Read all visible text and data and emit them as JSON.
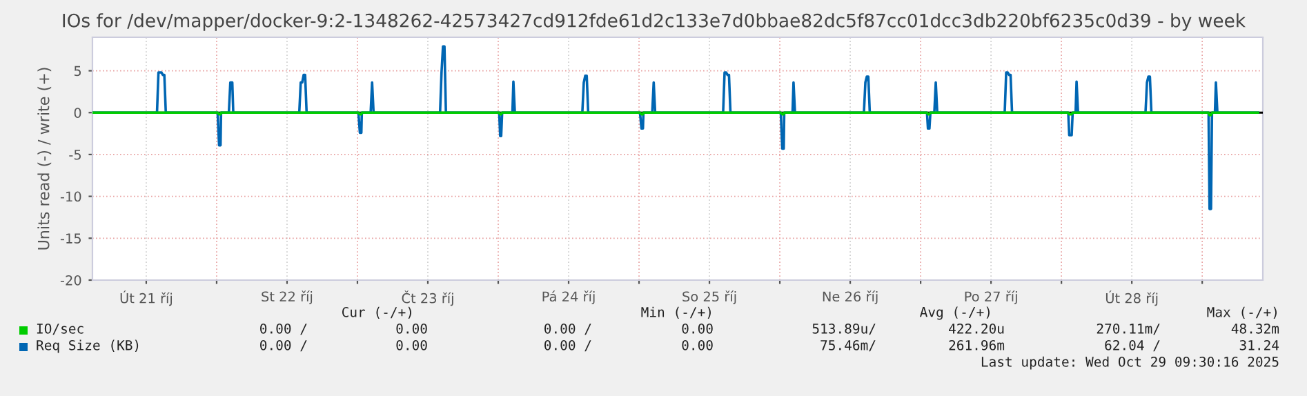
{
  "chart_data": {
    "type": "line",
    "title": "IOs for /dev/mapper/docker-9:2-1348262-42573427cd912fde61d2c133e7d0bbae82dc5f87cc01dcc3db220bf6235c0d39 - by week",
    "ylabel": "Units read (-) / write (+)",
    "xlim": [
      "2025-10-21T02:50",
      "2025-10-29T10:20"
    ],
    "xticks": [
      {
        "value": "2025-10-21T12:00",
        "label": "Út 21 říj"
      },
      {
        "value": "2025-10-22T00:00",
        "label": null
      },
      {
        "value": "2025-10-22T12:00",
        "label": "St 22 říj"
      },
      {
        "value": "2025-10-23T00:00",
        "label": null
      },
      {
        "value": "2025-10-23T12:00",
        "label": "Čt 23 říj"
      },
      {
        "value": "2025-10-24T00:00",
        "label": null
      },
      {
        "value": "2025-10-24T12:00",
        "label": "Pá 24 říj"
      },
      {
        "value": "2025-10-25T00:00",
        "label": null
      },
      {
        "value": "2025-10-25T12:00",
        "label": "So 25 říj"
      },
      {
        "value": "2025-10-26T00:00",
        "label": null
      },
      {
        "value": "2025-10-26T12:00",
        "label": "Ne 26 říj"
      },
      {
        "value": "2025-10-27T00:00",
        "label": null
      },
      {
        "value": "2025-10-27T12:00",
        "label": "Po 27 říj"
      },
      {
        "value": "2025-10-28T00:00",
        "label": null
      },
      {
        "value": "2025-10-28T12:00",
        "label": "Út 28 říj"
      },
      {
        "value": "2025-10-29T00:00",
        "label": null
      }
    ],
    "ylim": [
      -20,
      9
    ],
    "yticks": [
      -20,
      -15,
      -10,
      -5,
      0,
      5
    ],
    "grid": true,
    "legend": "bottom",
    "ref_lines": [
      {
        "axis": "y",
        "value": 0,
        "color": "#000000"
      }
    ],
    "series": [
      {
        "name": "IO/sec",
        "color": "#00cc00",
        "x": [
          "2025-10-21T03:00",
          "2025-10-22T00:10",
          "2025-10-22T00:25",
          "2025-10-22T00:40",
          "2025-10-22T00:45",
          "2025-10-23T00:10",
          "2025-10-23T00:25",
          "2025-10-23T00:40",
          "2025-10-23T00:45",
          "2025-10-24T00:10",
          "2025-10-24T00:20",
          "2025-10-24T00:30",
          "2025-10-24T00:40",
          "2025-10-25T00:10",
          "2025-10-25T00:25",
          "2025-10-25T00:40",
          "2025-10-25T00:45",
          "2025-10-26T00:10",
          "2025-10-26T00:25",
          "2025-10-26T00:40",
          "2025-10-26T00:45",
          "2025-10-27T01:05",
          "2025-10-27T01:15",
          "2025-10-27T01:30",
          "2025-10-27T01:40",
          "2025-10-28T01:10",
          "2025-10-28T01:20",
          "2025-10-28T01:45",
          "2025-10-28T01:55",
          "2025-10-29T01:05",
          "2025-10-29T01:15",
          "2025-10-29T01:30",
          "2025-10-29T01:40",
          "2025-10-29T09:30"
        ],
        "values": [
          0,
          0,
          -0.2,
          -0.2,
          0,
          0,
          -0.2,
          -0.2,
          0,
          0,
          -0.2,
          -0.2,
          0,
          0,
          -0.2,
          -0.2,
          0,
          0,
          -0.2,
          -0.2,
          0,
          0,
          -0.2,
          -0.2,
          0,
          0,
          -0.2,
          -0.2,
          0,
          0,
          -0.3,
          -0.3,
          0,
          0
        ]
      },
      {
        "name": "Req Size (KB)",
        "color": "#0066b3",
        "x": [
          "2025-10-21T03:00",
          "2025-10-21T13:50",
          "2025-10-21T14:05",
          "2025-10-21T14:35",
          "2025-10-21T14:50",
          "2025-10-21T15:05",
          "2025-10-21T15:20",
          "2025-10-22T00:10",
          "2025-10-22T00:25",
          "2025-10-22T00:40",
          "2025-10-22T00:45",
          "2025-10-22T02:05",
          "2025-10-22T02:20",
          "2025-10-22T02:40",
          "2025-10-22T02:50",
          "2025-10-22T14:05",
          "2025-10-22T14:20",
          "2025-10-22T14:35",
          "2025-10-22T14:50",
          "2025-10-22T15:05",
          "2025-10-22T15:20",
          "2025-10-23T00:10",
          "2025-10-23T00:25",
          "2025-10-23T00:40",
          "2025-10-23T00:45",
          "2025-10-23T02:15",
          "2025-10-23T02:30",
          "2025-10-23T02:45",
          "2025-10-23T14:05",
          "2025-10-23T14:20",
          "2025-10-23T14:35",
          "2025-10-23T14:50",
          "2025-10-23T15:05",
          "2025-10-24T00:10",
          "2025-10-24T00:20",
          "2025-10-24T00:30",
          "2025-10-24T00:40",
          "2025-10-24T02:25",
          "2025-10-24T02:35",
          "2025-10-24T02:50",
          "2025-10-24T14:20",
          "2025-10-24T14:35",
          "2025-10-24T14:50",
          "2025-10-24T15:05",
          "2025-10-24T15:20",
          "2025-10-25T00:10",
          "2025-10-25T00:25",
          "2025-10-25T00:40",
          "2025-10-25T00:45",
          "2025-10-25T02:15",
          "2025-10-25T02:30",
          "2025-10-25T02:45",
          "2025-10-25T14:20",
          "2025-10-25T14:35",
          "2025-10-25T14:50",
          "2025-10-25T15:05",
          "2025-10-25T15:20",
          "2025-10-25T15:35",
          "2025-10-26T00:10",
          "2025-10-26T00:25",
          "2025-10-26T00:40",
          "2025-10-26T00:45",
          "2025-10-26T02:10",
          "2025-10-26T02:20",
          "2025-10-26T02:35",
          "2025-10-26T14:20",
          "2025-10-26T14:35",
          "2025-10-26T14:50",
          "2025-10-26T15:05",
          "2025-10-26T15:20",
          "2025-10-27T01:05",
          "2025-10-27T01:15",
          "2025-10-27T01:30",
          "2025-10-27T01:40",
          "2025-10-27T02:20",
          "2025-10-27T02:35",
          "2025-10-27T02:50",
          "2025-10-27T14:20",
          "2025-10-27T14:35",
          "2025-10-27T14:50",
          "2025-10-27T15:05",
          "2025-10-27T15:20",
          "2025-10-27T15:35",
          "2025-10-28T01:10",
          "2025-10-28T01:20",
          "2025-10-28T01:45",
          "2025-10-28T01:55",
          "2025-10-28T02:25",
          "2025-10-28T02:35",
          "2025-10-28T02:50",
          "2025-10-28T14:20",
          "2025-10-28T14:35",
          "2025-10-28T14:50",
          "2025-10-28T15:05",
          "2025-10-28T15:20",
          "2025-10-29T01:05",
          "2025-10-29T01:15",
          "2025-10-29T01:30",
          "2025-10-29T01:40",
          "2025-10-29T02:10",
          "2025-10-29T02:20",
          "2025-10-29T02:35",
          "2025-10-29T09:30"
        ],
        "values": [
          0,
          0,
          4.8,
          4.8,
          4.5,
          4.5,
          0,
          0,
          -3.9,
          -3.9,
          0,
          0,
          3.6,
          3.6,
          0,
          0,
          3.6,
          3.6,
          4.5,
          4.5,
          0,
          0,
          -2.4,
          -2.4,
          0,
          0,
          3.6,
          0,
          0,
          4.8,
          7.9,
          7.9,
          0,
          0,
          -2.8,
          -2.8,
          0,
          0,
          3.7,
          0,
          0,
          3.6,
          4.4,
          4.4,
          0,
          0,
          -1.9,
          -1.9,
          0,
          0,
          3.6,
          0,
          0,
          4.8,
          4.8,
          4.5,
          4.5,
          0,
          0,
          -4.3,
          -4.3,
          0,
          0,
          3.6,
          0,
          0,
          3.6,
          4.3,
          4.3,
          0,
          0,
          -1.9,
          -1.9,
          0,
          0,
          3.6,
          0,
          0,
          4.8,
          4.8,
          4.5,
          4.5,
          0,
          0,
          -2.7,
          -2.7,
          0,
          0,
          3.7,
          0,
          0,
          3.6,
          4.3,
          4.3,
          0,
          0,
          -11.5,
          -11.5,
          0,
          0,
          3.6,
          0,
          0
        ]
      }
    ],
    "annotations": [
      "Cur (-/+)",
      "Min (-/+)",
      "Avg (-/+)",
      "Max (-/+)",
      "0.00 /",
      "0.00",
      "0.00 /",
      "0.00",
      "513.89u/",
      "422.20u",
      "270.11m/",
      "48.32m",
      "0.00 /",
      "0.00",
      "0.00 /",
      "0.00",
      "75.46m/",
      "261.96m",
      "62.04 /",
      "31.24",
      "Last update: Wed Oct 29 09:30:16 2025"
    ]
  }
}
